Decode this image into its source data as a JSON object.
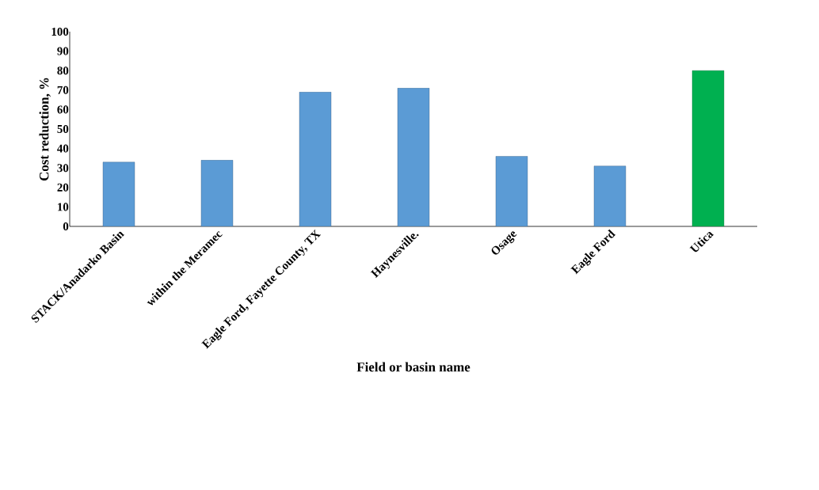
{
  "chart_data": {
    "type": "bar",
    "xlabel": "Field or basin name",
    "ylabel": "Cost reduction, %",
    "categories": [
      "STACK/Anadarko Basin",
      "within the Meramec",
      "Eagle Ford, Fayette County, TX",
      "Haynesville.",
      "Osage",
      "Eagle Ford",
      "Utica"
    ],
    "values": [
      33,
      34,
      69,
      71,
      36,
      31,
      80
    ],
    "colors": [
      "#5b9bd5",
      "#5b9bd5",
      "#5b9bd5",
      "#5b9bd5",
      "#5b9bd5",
      "#5b9bd5",
      "#00b050"
    ],
    "ylim": [
      0,
      100
    ],
    "yticks": [
      0,
      10,
      20,
      30,
      40,
      50,
      60,
      70,
      80,
      90,
      100
    ]
  }
}
